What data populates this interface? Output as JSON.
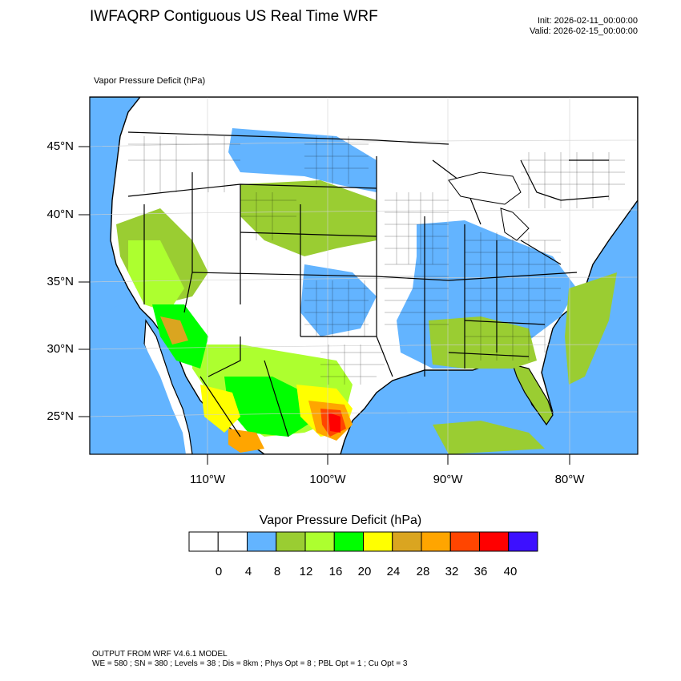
{
  "header": {
    "title": "IWFAQRP Contiguous US Real Time WRF",
    "init": "Init: 2026-02-11_00:00:00",
    "valid": "Valid: 2026-02-15_00:00:00"
  },
  "map": {
    "field_label": "Vapor Pressure Deficit   (hPa)",
    "lat_labels": [
      "45°N",
      "40°N",
      "35°N",
      "30°N",
      "25°N"
    ],
    "lon_labels": [
      "110°W",
      "100°W",
      "90°W",
      "80°W"
    ],
    "ocean_color": "#63b4ff"
  },
  "colorbar": {
    "title": "Vapor Pressure Deficit  (hPa)",
    "colors": [
      "#ffffff",
      "#ffffff",
      "#63b4ff",
      "#9acd32",
      "#adff2f",
      "#00ff00",
      "#ffff00",
      "#daa520",
      "#ffa500",
      "#ff4500",
      "#ff0000",
      "#3d10ff"
    ],
    "labels": [
      "0",
      "4",
      "8",
      "12",
      "16",
      "20",
      "24",
      "28",
      "32",
      "36",
      "40"
    ]
  },
  "footer": {
    "line1": "OUTPUT FROM WRF V4.6.1 MODEL",
    "line2": "WE = 580 ; SN = 380 ; Levels = 38 ; Dis = 8km ; Phys Opt = 8 ; PBL Opt = 1 ; Cu Opt = 3"
  }
}
